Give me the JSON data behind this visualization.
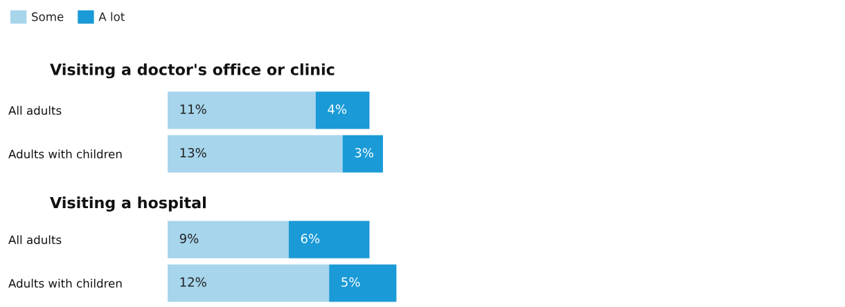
{
  "chart_data": [
    {
      "type": "bar",
      "orientation": "horizontal",
      "stacked": true,
      "title": "Visiting a doctor's office or clinic",
      "categories": [
        "All adults",
        "Adults with children"
      ],
      "legend": "top left",
      "tick_labels": "y",
      "grid": false,
      "series": [
        {
          "name": "Some",
          "color": "#a6d5ec",
          "values": [
            11,
            13
          ],
          "value_labels": [
            "11%",
            "13%"
          ]
        },
        {
          "name": "A lot",
          "color": "#1a9ad6",
          "values": [
            4,
            3
          ],
          "value_labels": [
            "4%",
            "3%"
          ]
        }
      ]
    },
    {
      "type": "bar",
      "orientation": "horizontal",
      "stacked": true,
      "title": "Visiting a hospital",
      "categories": [
        "All adults",
        "Adults with children"
      ],
      "tick_labels": "y",
      "grid": false,
      "series": [
        {
          "color": "#a6d5ec",
          "values": [
            9,
            12
          ],
          "value_labels": [
            "9%",
            "12%"
          ]
        },
        {
          "color": "#1a9ad6",
          "values": [
            6,
            5
          ],
          "value_labels": [
            "6%",
            "5%"
          ]
        }
      ]
    }
  ]
}
